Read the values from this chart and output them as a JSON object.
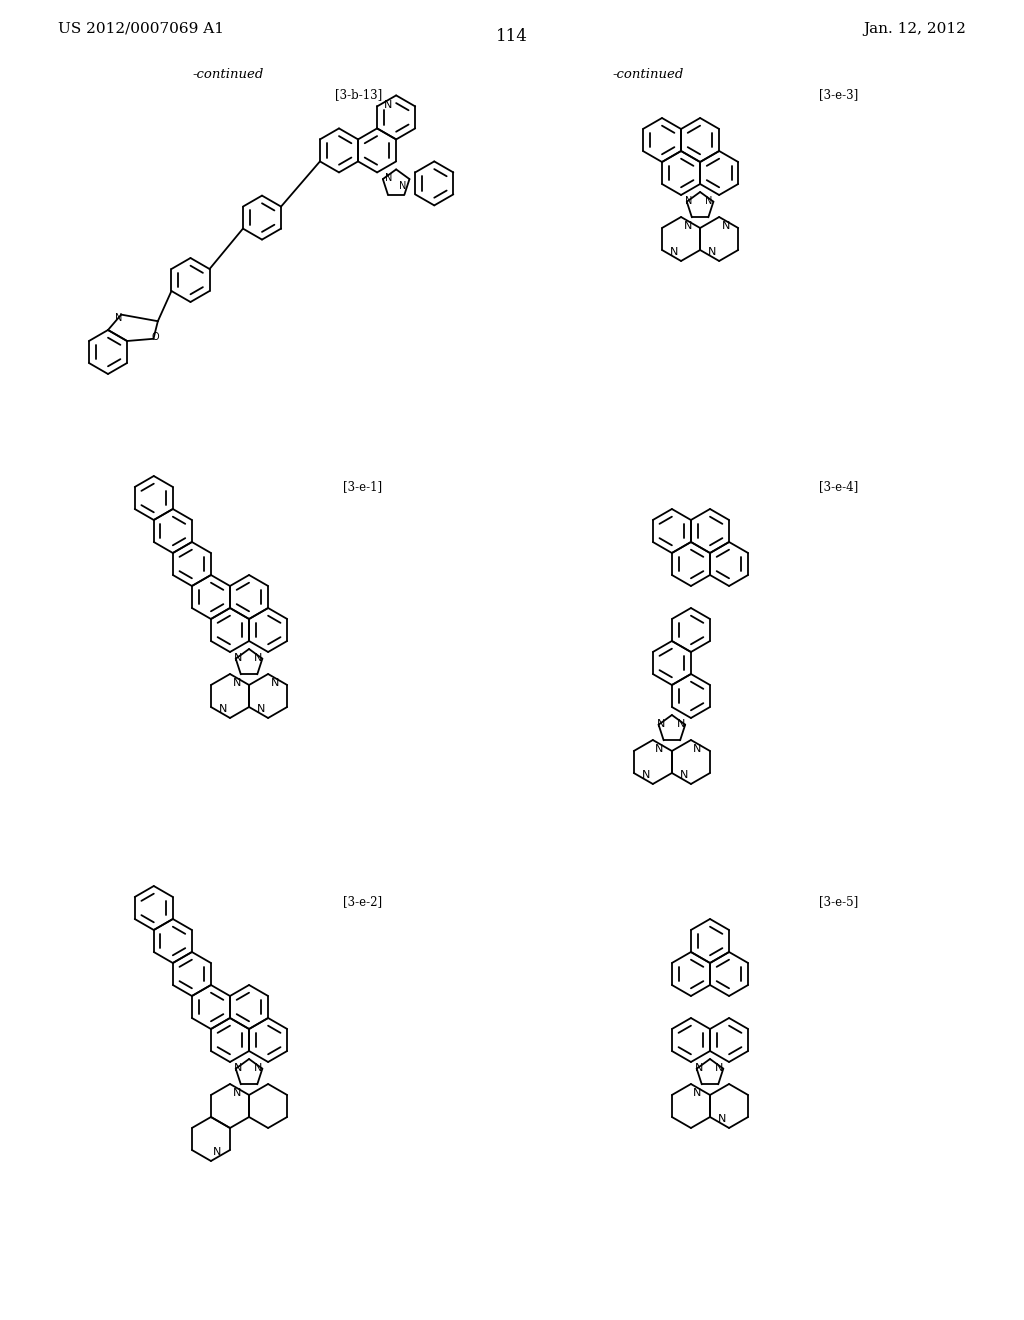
{
  "page_number": "114",
  "header_left": "US 2012/0007069 A1",
  "header_right": "Jan. 12, 2012",
  "continued_left": "-continued",
  "continued_right": "-continued",
  "label_3b13": "[3-b-13]",
  "label_3e1": "[3-e-1]",
  "label_3e2": "[3-e-2]",
  "label_3e3": "[3-e-3]",
  "label_3e4": "[3-e-4]",
  "label_3e5": "[3-e-5]",
  "bg_color": "#ffffff",
  "text_color": "#000000",
  "line_color": "#000000",
  "font_size_header": 11,
  "font_size_label": 9,
  "font_size_page": 12
}
